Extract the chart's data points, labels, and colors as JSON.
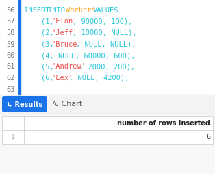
{
  "bg_code": "#ffffff",
  "line_number_color": "#7a7a7a",
  "blue_bar_color": "#1a73e8",
  "code_lines": [
    {
      "num": "56",
      "tokens": [
        [
          "INSERT ",
          "#26c6da"
        ],
        [
          "INTO ",
          "#26c6da"
        ],
        [
          "Workers ",
          "#ffa726"
        ],
        [
          "VALUES",
          "#26c6da"
        ]
      ]
    },
    {
      "num": "57",
      "tokens": [
        [
          "    (1, ",
          "#26c6da"
        ],
        [
          "'Elon'",
          "#ef5350"
        ],
        [
          ", 90000, 100),",
          "#26c6da"
        ]
      ]
    },
    {
      "num": "58",
      "tokens": [
        [
          "    (2, ",
          "#26c6da"
        ],
        [
          "'Jeff'",
          "#ef5350"
        ],
        [
          ", 10000, NULL),",
          "#26c6da"
        ]
      ]
    },
    {
      "num": "59",
      "tokens": [
        [
          "    (3, ",
          "#26c6da"
        ],
        [
          "'Bruce'",
          "#ef5350"
        ],
        [
          ", NULL, NULL),",
          "#26c6da"
        ]
      ]
    },
    {
      "num": "60",
      "tokens": [
        [
          "    (4, NULL, 60000, 600),",
          "#26c6da"
        ]
      ]
    },
    {
      "num": "61",
      "tokens": [
        [
          "    (5, ",
          "#26c6da"
        ],
        [
          "'Andrew'",
          "#ef5350"
        ],
        [
          ", 2000, 200),",
          "#26c6da"
        ]
      ]
    },
    {
      "num": "62",
      "tokens": [
        [
          "    (6, ",
          "#26c6da"
        ],
        [
          "'Lex'",
          "#ef5350"
        ],
        [
          ", NULL, 4200);",
          "#26c6da"
        ]
      ]
    },
    {
      "num": "63",
      "tokens": [
        [
          "",
          "#26c6da"
        ]
      ]
    }
  ],
  "results_btn_color": "#1a73e8",
  "results_btn_text": "↳ Results",
  "chart_icon": "∿",
  "chart_text": " Chart",
  "table_header_col1": "...",
  "table_header_col2": "number of rows inserted",
  "table_row_num": "1",
  "table_row_val": "6",
  "table_border": "#d0d0d0",
  "header_font_size": 7.0,
  "code_font_size": 7.5,
  "num_font_size": 7.5
}
